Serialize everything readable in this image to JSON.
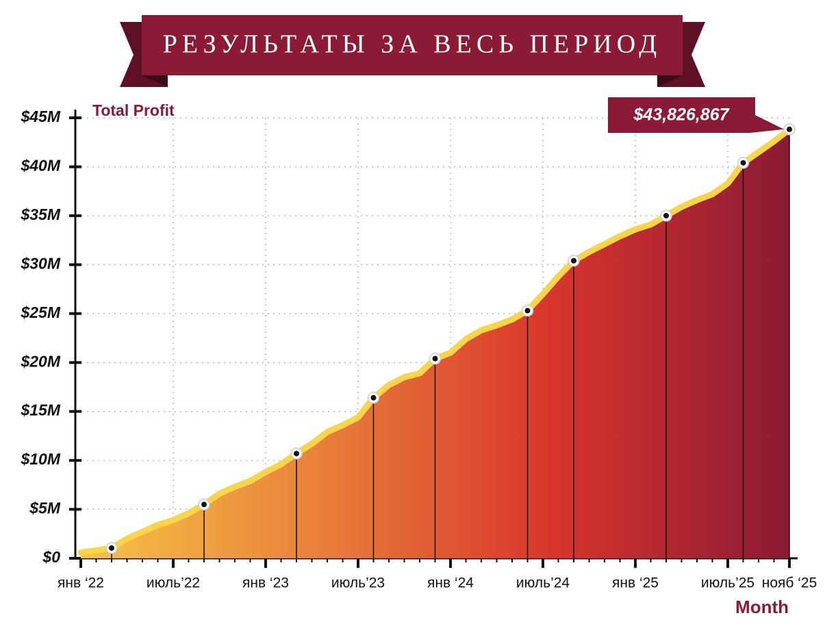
{
  "chart_data": {
    "type": "area",
    "title": "РЕЗУЛЬТАТЫ ЗА ВЕСЬ ПЕРИОД",
    "y_label": "Total Profit",
    "x_label": "Month",
    "categories": [
      "янв ‘22",
      null,
      null,
      null,
      null,
      null,
      "июль’22",
      null,
      null,
      null,
      null,
      null,
      "янв ‘23",
      null,
      null,
      null,
      null,
      null,
      "июль’23",
      null,
      null,
      null,
      null,
      null,
      "янв ‘24",
      null,
      null,
      null,
      null,
      null,
      "июль’24",
      null,
      null,
      null,
      null,
      null,
      "янв ‘25",
      null,
      null,
      null,
      null,
      null,
      "июль’25",
      null,
      null,
      null,
      "нояб ‘25"
    ],
    "values": [
      0.6,
      0.8,
      1.05,
      2.0,
      2.7,
      3.4,
      3.9,
      4.6,
      5.5,
      6.6,
      7.3,
      7.9,
      8.8,
      9.6,
      10.7,
      11.7,
      12.9,
      13.6,
      14.4,
      16.4,
      17.7,
      18.5,
      18.9,
      20.4,
      21.0,
      22.4,
      23.3,
      23.8,
      24.4,
      25.3,
      27.0,
      28.8,
      30.4,
      31.3,
      32.1,
      32.9,
      33.6,
      34.1,
      35.0,
      35.9,
      36.6,
      37.2,
      38.3,
      40.4,
      41.5,
      42.6,
      43.826867
    ],
    "value_labels": [
      null,
      null,
      null,
      null,
      null,
      null,
      null,
      null,
      null,
      null,
      null,
      null,
      null,
      null,
      null,
      null,
      null,
      null,
      null,
      null,
      null,
      null,
      null,
      null,
      null,
      null,
      null,
      null,
      null,
      null,
      null,
      null,
      null,
      null,
      null,
      null,
      null,
      null,
      null,
      null,
      null,
      null,
      null,
      null,
      null,
      null,
      "$43,826,867"
    ],
    "markers": [
      2,
      8,
      14,
      19,
      23,
      29,
      32,
      38,
      43,
      46
    ],
    "ylim": [
      0,
      45
    ],
    "yticks": [
      {
        "value": 0,
        "label": "$0"
      },
      {
        "value": 5,
        "label": "$5M"
      },
      {
        "value": 10,
        "label": "$10M"
      },
      {
        "value": 15,
        "label": "$15M"
      },
      {
        "value": 20,
        "label": "$20M"
      },
      {
        "value": 25,
        "label": "$25M"
      },
      {
        "value": 30,
        "label": "$30M"
      },
      {
        "value": 35,
        "label": "$35M"
      },
      {
        "value": 40,
        "label": "$40M"
      },
      {
        "value": 45,
        "label": "$45M"
      }
    ],
    "grid": true,
    "line_color": "#f9d44c",
    "fill_colors": [
      "#f6c445",
      "#e9803b",
      "#d8352c",
      "#8a1a35"
    ],
    "accent_color": "#8a1a35"
  }
}
